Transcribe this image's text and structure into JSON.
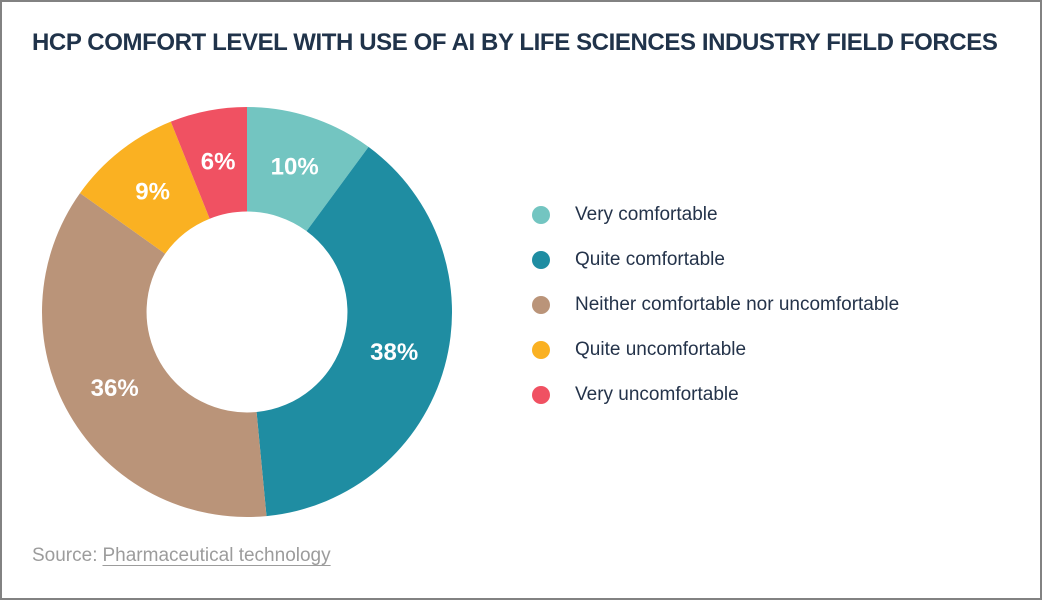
{
  "title": "HCP COMFORT LEVEL WITH USE OF AI BY LIFE SCIENCES INDUSTRY FIELD FORCES",
  "chart_data": {
    "type": "pie",
    "subtype": "donut",
    "title": "HCP COMFORT LEVEL WITH USE OF AI BY LIFE SCIENCES INDUSTRY FIELD FORCES",
    "categories": [
      "Very comfortable",
      "Quite comfortable",
      "Neither comfortable nor uncomfortable",
      "Quite uncomfortable",
      "Very uncomfortable"
    ],
    "values": [
      10,
      38,
      36,
      9,
      6
    ],
    "slice_labels": [
      "10%",
      "38%",
      "36%",
      "9%",
      "6%"
    ],
    "colors": [
      "#73C5C1",
      "#1F8DA2",
      "#BA9479",
      "#FAB122",
      "#F05162"
    ],
    "slice_label_color": "#FFFFFF",
    "start_angle_deg": 0,
    "direction": "clockwise",
    "inner_radius_ratio": 0.49,
    "legend_position": "right"
  },
  "source": {
    "prefix": "Source:",
    "link_text": "Pharmaceutical technology"
  }
}
